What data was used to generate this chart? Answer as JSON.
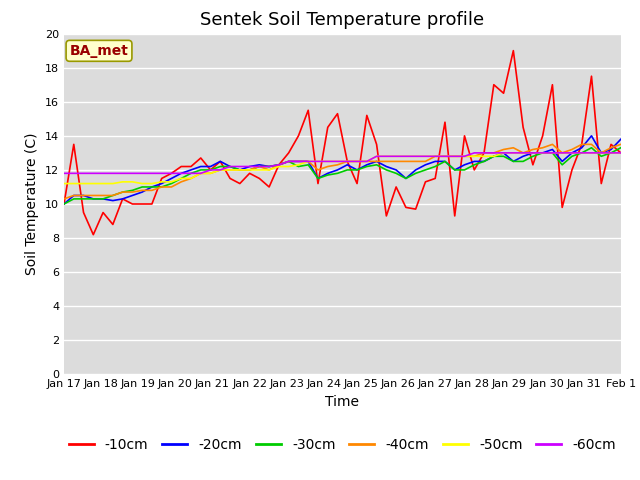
{
  "title": "Sentek Soil Temperature profile",
  "xlabel": "Time",
  "ylabel": "Soil Temperature (C)",
  "annotation": "BA_met",
  "ylim": [
    0,
    20
  ],
  "yticks": [
    0,
    2,
    4,
    6,
    8,
    10,
    12,
    14,
    16,
    18,
    20
  ],
  "x_labels": [
    "Jan 17",
    "Jan 18",
    "Jan 19",
    "Jan 20",
    "Jan 21",
    "Jan 22",
    "Jan 23",
    "Jan 24",
    "Jan 25",
    "Jan 26",
    "Jan 27",
    "Jan 28",
    "Jan 29",
    "Jan 30",
    "Jan 31",
    "Feb 1"
  ],
  "series_order": [
    "-10cm",
    "-20cm",
    "-30cm",
    "-40cm",
    "-50cm",
    "-60cm"
  ],
  "series": {
    "-10cm": {
      "color": "#FF0000",
      "linewidth": 1.2,
      "y": [
        10.0,
        13.5,
        9.5,
        8.2,
        9.5,
        8.8,
        10.3,
        10.0,
        10.0,
        10.0,
        11.5,
        11.8,
        12.2,
        12.2,
        12.7,
        12.0,
        12.5,
        11.5,
        11.2,
        11.8,
        11.5,
        11.0,
        12.3,
        13.0,
        14.0,
        15.5,
        11.2,
        14.5,
        15.3,
        12.5,
        11.2,
        15.2,
        13.5,
        9.3,
        11.0,
        9.8,
        9.7,
        11.3,
        11.5,
        14.8,
        9.3,
        14.0,
        12.0,
        13.0,
        17.0,
        16.5,
        19.0,
        14.5,
        12.3,
        14.0,
        17.0,
        9.8,
        12.0,
        13.5,
        17.5,
        11.2,
        13.5,
        13.0
      ]
    },
    "-20cm": {
      "color": "#0000FF",
      "linewidth": 1.2,
      "y": [
        10.0,
        10.5,
        10.5,
        10.3,
        10.3,
        10.2,
        10.3,
        10.5,
        10.7,
        11.0,
        11.2,
        11.5,
        11.8,
        12.0,
        12.2,
        12.2,
        12.5,
        12.2,
        12.0,
        12.2,
        12.3,
        12.2,
        12.3,
        12.5,
        12.5,
        12.5,
        11.5,
        11.8,
        12.0,
        12.3,
        12.0,
        12.3,
        12.5,
        12.2,
        12.0,
        11.5,
        12.0,
        12.3,
        12.5,
        12.5,
        12.0,
        12.3,
        12.5,
        12.5,
        12.8,
        13.0,
        12.5,
        12.8,
        13.0,
        13.0,
        13.2,
        12.5,
        13.0,
        13.3,
        14.0,
        13.0,
        13.2,
        13.8
      ]
    },
    "-30cm": {
      "color": "#00CC00",
      "linewidth": 1.2,
      "y": [
        10.0,
        10.3,
        10.3,
        10.3,
        10.3,
        10.5,
        10.7,
        10.8,
        11.0,
        11.0,
        11.0,
        11.2,
        11.5,
        11.8,
        12.0,
        12.0,
        12.2,
        12.2,
        12.0,
        12.0,
        12.2,
        12.2,
        12.3,
        12.5,
        12.2,
        12.3,
        11.5,
        11.7,
        11.8,
        12.0,
        12.0,
        12.2,
        12.3,
        12.0,
        11.8,
        11.5,
        11.8,
        12.0,
        12.2,
        12.5,
        12.0,
        12.0,
        12.3,
        12.5,
        12.8,
        12.8,
        12.5,
        12.5,
        12.8,
        13.0,
        13.0,
        12.3,
        12.8,
        13.0,
        13.3,
        12.8,
        13.0,
        13.3
      ]
    },
    "-40cm": {
      "color": "#FF8800",
      "linewidth": 1.2,
      "y": [
        10.3,
        10.5,
        10.5,
        10.5,
        10.5,
        10.5,
        10.7,
        10.7,
        10.8,
        10.8,
        11.0,
        11.0,
        11.3,
        11.5,
        11.8,
        11.8,
        12.0,
        12.0,
        12.0,
        12.0,
        12.2,
        12.0,
        12.3,
        12.5,
        12.5,
        12.5,
        12.0,
        12.2,
        12.3,
        12.5,
        12.5,
        12.5,
        12.5,
        12.5,
        12.5,
        12.5,
        12.5,
        12.5,
        12.8,
        12.8,
        12.8,
        12.8,
        12.8,
        13.0,
        13.0,
        13.2,
        13.3,
        13.0,
        13.2,
        13.3,
        13.5,
        13.0,
        13.2,
        13.5,
        13.5,
        13.0,
        13.3,
        13.5
      ]
    },
    "-50cm": {
      "color": "#FFFF00",
      "linewidth": 1.2,
      "y": [
        11.2,
        11.2,
        11.2,
        11.2,
        11.2,
        11.2,
        11.3,
        11.3,
        11.2,
        11.2,
        11.3,
        11.3,
        11.5,
        11.5,
        11.8,
        11.8,
        12.0,
        12.0,
        12.0,
        12.0,
        12.0,
        12.0,
        12.2,
        12.2,
        12.3,
        12.5,
        12.5,
        12.5,
        12.5,
        12.5,
        12.5,
        12.5,
        12.8,
        12.8,
        12.8,
        12.8,
        12.8,
        12.8,
        12.8,
        12.8,
        12.8,
        12.8,
        12.8,
        12.8,
        12.8,
        13.0,
        13.0,
        13.0,
        13.0,
        13.0,
        13.0,
        13.0,
        13.0,
        13.0,
        13.0,
        13.0,
        13.0,
        13.0
      ]
    },
    "-60cm": {
      "color": "#CC00FF",
      "linewidth": 1.2,
      "y": [
        11.8,
        11.8,
        11.8,
        11.8,
        11.8,
        11.8,
        11.8,
        11.8,
        11.8,
        11.8,
        11.8,
        11.8,
        11.8,
        11.8,
        11.8,
        12.0,
        12.0,
        12.2,
        12.2,
        12.2,
        12.2,
        12.2,
        12.3,
        12.5,
        12.5,
        12.5,
        12.5,
        12.5,
        12.5,
        12.5,
        12.5,
        12.5,
        12.8,
        12.8,
        12.8,
        12.8,
        12.8,
        12.8,
        12.8,
        12.8,
        12.8,
        12.8,
        13.0,
        13.0,
        13.0,
        13.0,
        13.0,
        13.0,
        13.0,
        13.0,
        13.0,
        13.0,
        13.0,
        13.0,
        13.0,
        13.0,
        13.0,
        13.0
      ]
    }
  },
  "background_color": "#DCDCDC",
  "grid_color": "#FFFFFF",
  "fig_bg": "#FFFFFF",
  "title_fontsize": 13,
  "tick_fontsize": 8,
  "axis_label_fontsize": 10,
  "legend_fontsize": 10,
  "annotation_box_color": "#FFFFCC",
  "annotation_text_color": "#990000",
  "annotation_border_color": "#999900"
}
